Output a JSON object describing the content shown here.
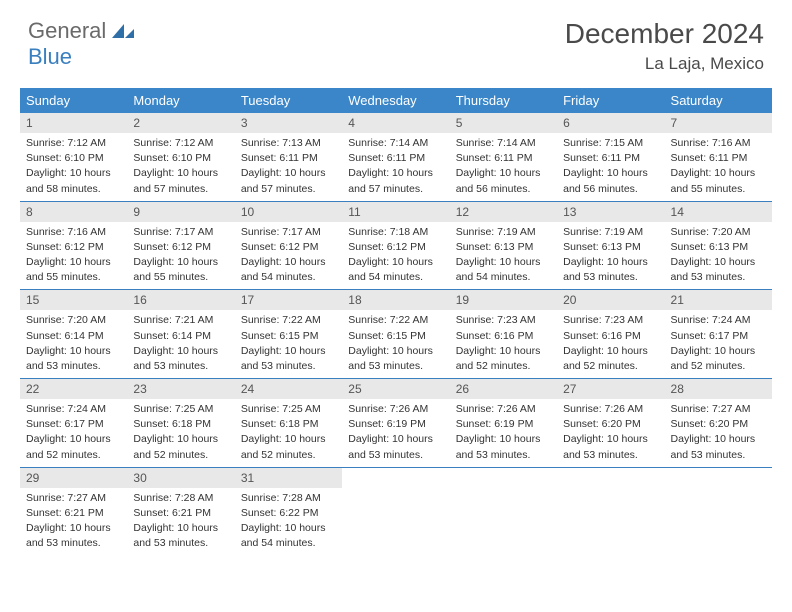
{
  "brand": {
    "word1": "General",
    "word2": "Blue"
  },
  "title": "December 2024",
  "location": "La Laja, Mexico",
  "colors": {
    "header_bg": "#3a86c8",
    "header_text": "#ffffff",
    "daynum_bg": "#e8e8e8",
    "rule": "#3a7fbf",
    "brand_gray": "#6a6a6a",
    "brand_blue": "#3a7fbf"
  },
  "weekdays": [
    "Sunday",
    "Monday",
    "Tuesday",
    "Wednesday",
    "Thursday",
    "Friday",
    "Saturday"
  ],
  "days": [
    {
      "n": "1",
      "sr": "Sunrise: 7:12 AM",
      "ss": "Sunset: 6:10 PM",
      "dl1": "Daylight: 10 hours",
      "dl2": "and 58 minutes."
    },
    {
      "n": "2",
      "sr": "Sunrise: 7:12 AM",
      "ss": "Sunset: 6:10 PM",
      "dl1": "Daylight: 10 hours",
      "dl2": "and 57 minutes."
    },
    {
      "n": "3",
      "sr": "Sunrise: 7:13 AM",
      "ss": "Sunset: 6:11 PM",
      "dl1": "Daylight: 10 hours",
      "dl2": "and 57 minutes."
    },
    {
      "n": "4",
      "sr": "Sunrise: 7:14 AM",
      "ss": "Sunset: 6:11 PM",
      "dl1": "Daylight: 10 hours",
      "dl2": "and 57 minutes."
    },
    {
      "n": "5",
      "sr": "Sunrise: 7:14 AM",
      "ss": "Sunset: 6:11 PM",
      "dl1": "Daylight: 10 hours",
      "dl2": "and 56 minutes."
    },
    {
      "n": "6",
      "sr": "Sunrise: 7:15 AM",
      "ss": "Sunset: 6:11 PM",
      "dl1": "Daylight: 10 hours",
      "dl2": "and 56 minutes."
    },
    {
      "n": "7",
      "sr": "Sunrise: 7:16 AM",
      "ss": "Sunset: 6:11 PM",
      "dl1": "Daylight: 10 hours",
      "dl2": "and 55 minutes."
    },
    {
      "n": "8",
      "sr": "Sunrise: 7:16 AM",
      "ss": "Sunset: 6:12 PM",
      "dl1": "Daylight: 10 hours",
      "dl2": "and 55 minutes."
    },
    {
      "n": "9",
      "sr": "Sunrise: 7:17 AM",
      "ss": "Sunset: 6:12 PM",
      "dl1": "Daylight: 10 hours",
      "dl2": "and 55 minutes."
    },
    {
      "n": "10",
      "sr": "Sunrise: 7:17 AM",
      "ss": "Sunset: 6:12 PM",
      "dl1": "Daylight: 10 hours",
      "dl2": "and 54 minutes."
    },
    {
      "n": "11",
      "sr": "Sunrise: 7:18 AM",
      "ss": "Sunset: 6:12 PM",
      "dl1": "Daylight: 10 hours",
      "dl2": "and 54 minutes."
    },
    {
      "n": "12",
      "sr": "Sunrise: 7:19 AM",
      "ss": "Sunset: 6:13 PM",
      "dl1": "Daylight: 10 hours",
      "dl2": "and 54 minutes."
    },
    {
      "n": "13",
      "sr": "Sunrise: 7:19 AM",
      "ss": "Sunset: 6:13 PM",
      "dl1": "Daylight: 10 hours",
      "dl2": "and 53 minutes."
    },
    {
      "n": "14",
      "sr": "Sunrise: 7:20 AM",
      "ss": "Sunset: 6:13 PM",
      "dl1": "Daylight: 10 hours",
      "dl2": "and 53 minutes."
    },
    {
      "n": "15",
      "sr": "Sunrise: 7:20 AM",
      "ss": "Sunset: 6:14 PM",
      "dl1": "Daylight: 10 hours",
      "dl2": "and 53 minutes."
    },
    {
      "n": "16",
      "sr": "Sunrise: 7:21 AM",
      "ss": "Sunset: 6:14 PM",
      "dl1": "Daylight: 10 hours",
      "dl2": "and 53 minutes."
    },
    {
      "n": "17",
      "sr": "Sunrise: 7:22 AM",
      "ss": "Sunset: 6:15 PM",
      "dl1": "Daylight: 10 hours",
      "dl2": "and 53 minutes."
    },
    {
      "n": "18",
      "sr": "Sunrise: 7:22 AM",
      "ss": "Sunset: 6:15 PM",
      "dl1": "Daylight: 10 hours",
      "dl2": "and 53 minutes."
    },
    {
      "n": "19",
      "sr": "Sunrise: 7:23 AM",
      "ss": "Sunset: 6:16 PM",
      "dl1": "Daylight: 10 hours",
      "dl2": "and 52 minutes."
    },
    {
      "n": "20",
      "sr": "Sunrise: 7:23 AM",
      "ss": "Sunset: 6:16 PM",
      "dl1": "Daylight: 10 hours",
      "dl2": "and 52 minutes."
    },
    {
      "n": "21",
      "sr": "Sunrise: 7:24 AM",
      "ss": "Sunset: 6:17 PM",
      "dl1": "Daylight: 10 hours",
      "dl2": "and 52 minutes."
    },
    {
      "n": "22",
      "sr": "Sunrise: 7:24 AM",
      "ss": "Sunset: 6:17 PM",
      "dl1": "Daylight: 10 hours",
      "dl2": "and 52 minutes."
    },
    {
      "n": "23",
      "sr": "Sunrise: 7:25 AM",
      "ss": "Sunset: 6:18 PM",
      "dl1": "Daylight: 10 hours",
      "dl2": "and 52 minutes."
    },
    {
      "n": "24",
      "sr": "Sunrise: 7:25 AM",
      "ss": "Sunset: 6:18 PM",
      "dl1": "Daylight: 10 hours",
      "dl2": "and 52 minutes."
    },
    {
      "n": "25",
      "sr": "Sunrise: 7:26 AM",
      "ss": "Sunset: 6:19 PM",
      "dl1": "Daylight: 10 hours",
      "dl2": "and 53 minutes."
    },
    {
      "n": "26",
      "sr": "Sunrise: 7:26 AM",
      "ss": "Sunset: 6:19 PM",
      "dl1": "Daylight: 10 hours",
      "dl2": "and 53 minutes."
    },
    {
      "n": "27",
      "sr": "Sunrise: 7:26 AM",
      "ss": "Sunset: 6:20 PM",
      "dl1": "Daylight: 10 hours",
      "dl2": "and 53 minutes."
    },
    {
      "n": "28",
      "sr": "Sunrise: 7:27 AM",
      "ss": "Sunset: 6:20 PM",
      "dl1": "Daylight: 10 hours",
      "dl2": "and 53 minutes."
    },
    {
      "n": "29",
      "sr": "Sunrise: 7:27 AM",
      "ss": "Sunset: 6:21 PM",
      "dl1": "Daylight: 10 hours",
      "dl2": "and 53 minutes."
    },
    {
      "n": "30",
      "sr": "Sunrise: 7:28 AM",
      "ss": "Sunset: 6:21 PM",
      "dl1": "Daylight: 10 hours",
      "dl2": "and 53 minutes."
    },
    {
      "n": "31",
      "sr": "Sunrise: 7:28 AM",
      "ss": "Sunset: 6:22 PM",
      "dl1": "Daylight: 10 hours",
      "dl2": "and 54 minutes."
    }
  ]
}
